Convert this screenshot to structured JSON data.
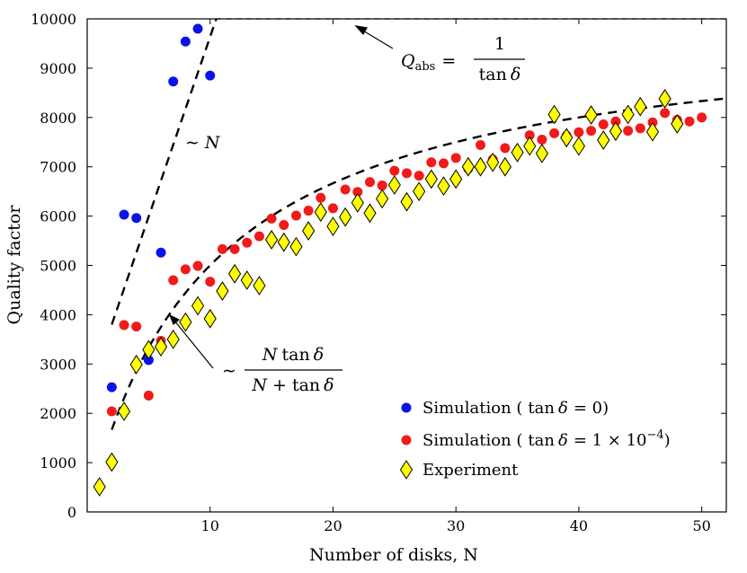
{
  "chart_data": {
    "type": "scatter",
    "xlabel": "Number of disks, N",
    "ylabel": "Quality factor",
    "xlim": [
      0,
      52
    ],
    "ylim": [
      0,
      10000
    ],
    "xticks": [
      10,
      20,
      30,
      40,
      50
    ],
    "yticks": [
      0,
      1000,
      2000,
      3000,
      4000,
      5000,
      6000,
      7000,
      8000,
      9000,
      10000
    ],
    "grid": false,
    "legend_position": "bottom-right",
    "series": [
      {
        "name": "Simulation ( tan δ = 0)",
        "marker": "circle",
        "color": "#0a14e6",
        "points": [
          [
            2,
            2530
          ],
          [
            3,
            6030
          ],
          [
            4,
            5960
          ],
          [
            5,
            3080
          ],
          [
            6,
            5260
          ],
          [
            7,
            8730
          ],
          [
            8,
            9540
          ],
          [
            9,
            9800
          ],
          [
            10,
            8850
          ]
        ]
      },
      {
        "name": "Simulation ( tan δ = 1 × 10⁻⁴)",
        "marker": "circle",
        "color": "#f21a1a",
        "points": [
          [
            2,
            2040
          ],
          [
            3,
            3790
          ],
          [
            4,
            3760
          ],
          [
            5,
            2360
          ],
          [
            6,
            3470
          ],
          [
            7,
            4700
          ],
          [
            8,
            4920
          ],
          [
            9,
            4990
          ],
          [
            10,
            4670
          ],
          [
            11,
            5330
          ],
          [
            12,
            5330
          ],
          [
            13,
            5460
          ],
          [
            14,
            5590
          ],
          [
            15,
            5950
          ],
          [
            16,
            5820
          ],
          [
            17,
            6010
          ],
          [
            18,
            6110
          ],
          [
            19,
            6370
          ],
          [
            20,
            6160
          ],
          [
            21,
            6540
          ],
          [
            22,
            6490
          ],
          [
            23,
            6690
          ],
          [
            24,
            6620
          ],
          [
            25,
            6920
          ],
          [
            26,
            6870
          ],
          [
            27,
            6820
          ],
          [
            28,
            7090
          ],
          [
            29,
            7070
          ],
          [
            30,
            7180
          ],
          [
            31,
            6960
          ],
          [
            32,
            7440
          ],
          [
            33,
            7150
          ],
          [
            34,
            7380
          ],
          [
            35,
            7300
          ],
          [
            36,
            7640
          ],
          [
            37,
            7550
          ],
          [
            38,
            7680
          ],
          [
            39,
            7630
          ],
          [
            40,
            7700
          ],
          [
            41,
            7730
          ],
          [
            42,
            7860
          ],
          [
            43,
            7920
          ],
          [
            44,
            7730
          ],
          [
            45,
            7780
          ],
          [
            46,
            7900
          ],
          [
            47,
            8090
          ],
          [
            48,
            7950
          ],
          [
            49,
            7920
          ],
          [
            50,
            8000
          ]
        ]
      },
      {
        "name": "Experiment",
        "marker": "diamond",
        "color": "#ffff00",
        "points": [
          [
            1,
            510
          ],
          [
            2,
            1010
          ],
          [
            3,
            2040
          ],
          [
            4,
            2990
          ],
          [
            5,
            3290
          ],
          [
            6,
            3350
          ],
          [
            7,
            3500
          ],
          [
            8,
            3850
          ],
          [
            9,
            4180
          ],
          [
            10,
            3920
          ],
          [
            11,
            4480
          ],
          [
            12,
            4830
          ],
          [
            13,
            4700
          ],
          [
            14,
            4590
          ],
          [
            15,
            5520
          ],
          [
            16,
            5470
          ],
          [
            17,
            5380
          ],
          [
            18,
            5700
          ],
          [
            19,
            6080
          ],
          [
            20,
            5790
          ],
          [
            21,
            5980
          ],
          [
            22,
            6270
          ],
          [
            23,
            6060
          ],
          [
            24,
            6350
          ],
          [
            25,
            6630
          ],
          [
            26,
            6290
          ],
          [
            27,
            6500
          ],
          [
            28,
            6750
          ],
          [
            29,
            6610
          ],
          [
            30,
            6750
          ],
          [
            31,
            7000
          ],
          [
            32,
            7000
          ],
          [
            33,
            7090
          ],
          [
            34,
            7000
          ],
          [
            35,
            7290
          ],
          [
            36,
            7420
          ],
          [
            37,
            7270
          ],
          [
            38,
            8060
          ],
          [
            39,
            7590
          ],
          [
            40,
            7420
          ],
          [
            41,
            8050
          ],
          [
            42,
            7540
          ],
          [
            43,
            7720
          ],
          [
            44,
            8060
          ],
          [
            45,
            8220
          ],
          [
            46,
            7710
          ],
          [
            47,
            8380
          ],
          [
            48,
            7870
          ]
        ]
      }
    ],
    "reference_lines": [
      {
        "label": "~ N",
        "style": "dashed",
        "points": [
          [
            2,
            3800
          ],
          [
            10.5,
            10000
          ]
        ]
      },
      {
        "label": "Q_abs = 1 / tan δ",
        "style": "dashed",
        "points": [
          [
            10.5,
            10000
          ],
          [
            52,
            10000
          ]
        ]
      },
      {
        "label": "~ N tan δ / (N + tan δ)",
        "style": "dashed",
        "function": "Q = N·10000/(N+10)",
        "x_range": [
          2,
          52
        ]
      }
    ],
    "annotations": {
      "qabs": {
        "lhs_var": "Q",
        "lhs_sub": "abs",
        "eq": "=",
        "num": "1",
        "den_fn": "tan",
        "den_var": "δ"
      },
      "lin": {
        "tilde": "∼",
        "var": "N"
      },
      "sat": {
        "tilde": "∼",
        "num_var": "N",
        "num_fn": "tan",
        "num_delta": "δ",
        "den_var": "N",
        "den_plus": "+",
        "den_fn": "tan",
        "den_delta": "δ"
      }
    },
    "legend_math": {
      "entry0": {
        "pre": "Simulation (",
        "fn": "tan",
        "delta": "δ",
        "rest": "= 0)"
      },
      "entry1": {
        "pre": "Simulation (",
        "fn": "tan",
        "delta": "δ",
        "rest": "= 1 × 10",
        "exp": "−4",
        "close": ")"
      },
      "entry2": {
        "pre": "Experiment"
      }
    }
  }
}
